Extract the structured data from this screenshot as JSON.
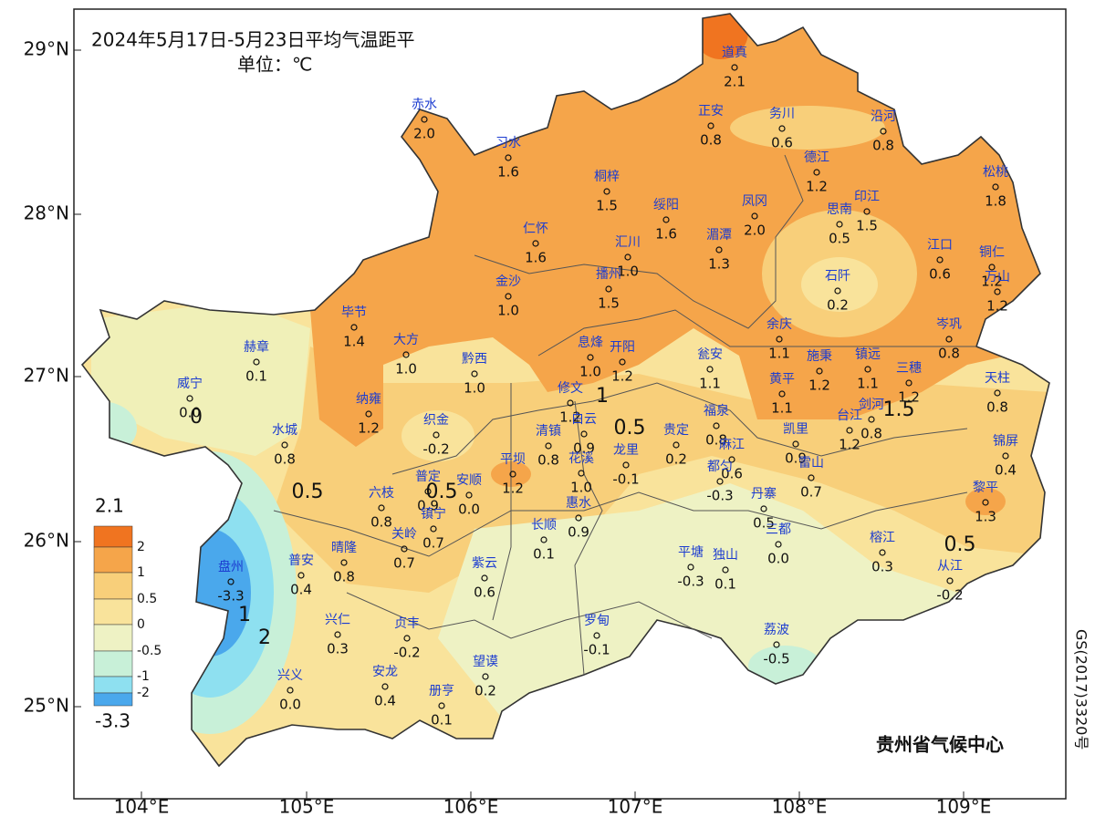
{
  "header": {
    "title": "2024年5月17日-5月23日平均气温距平",
    "unit": "单位：℃"
  },
  "axes": {
    "lat": [
      "29°N",
      "28°N",
      "27°N",
      "26°N",
      "25°N"
    ],
    "lon": [
      "104°E",
      "105°E",
      "106°E",
      "107°E",
      "108°E",
      "109°E"
    ]
  },
  "legend": {
    "max": "2.1",
    "min": "-3.3",
    "ticks": [
      "2",
      "1",
      "0.5",
      "0",
      "-0.5",
      "-1",
      "-2"
    ]
  },
  "stations": [
    {
      "name": "道真",
      "value": "2.1"
    },
    {
      "name": "赤水",
      "value": "2.0"
    },
    {
      "name": "习水",
      "value": "1.6"
    },
    {
      "name": "正安",
      "value": "0.8"
    },
    {
      "name": "务川",
      "value": "0.6"
    },
    {
      "name": "沿河",
      "value": "0.8"
    },
    {
      "name": "德江",
      "value": "1.2"
    },
    {
      "name": "桐梓",
      "value": "1.5"
    },
    {
      "name": "松桃",
      "value": "1.8"
    },
    {
      "name": "绥阳",
      "value": "1.6"
    },
    {
      "name": "凤冈",
      "value": "2.0"
    },
    {
      "name": "印江",
      "value": "1.5"
    },
    {
      "name": "思南",
      "value": "0.5"
    },
    {
      "name": "仁怀",
      "value": "1.6"
    },
    {
      "name": "汇川",
      "value": "1.0"
    },
    {
      "name": "湄潭",
      "value": "1.3"
    },
    {
      "name": "江口",
      "value": "0.6"
    },
    {
      "name": "铜仁",
      "value": "1.2"
    },
    {
      "name": "万山",
      "value": "1.2"
    },
    {
      "name": "石阡",
      "value": "0.2"
    },
    {
      "name": "播州",
      "value": "1.5"
    },
    {
      "name": "金沙",
      "value": "1.0"
    },
    {
      "name": "毕节",
      "value": "1.4"
    },
    {
      "name": "赫章",
      "value": "0.1"
    },
    {
      "name": "大方",
      "value": "1.0"
    },
    {
      "name": "黔西",
      "value": "1.0"
    },
    {
      "name": "息烽",
      "value": "1.0"
    },
    {
      "name": "开阳",
      "value": "1.2"
    },
    {
      "name": "瓮安",
      "value": "1.1"
    },
    {
      "name": "余庆",
      "value": "1.1"
    },
    {
      "name": "施秉",
      "value": "1.2"
    },
    {
      "name": "镇远",
      "value": "1.1"
    },
    {
      "name": "岑巩",
      "value": "0.8"
    },
    {
      "name": "三穗",
      "value": "1.2"
    },
    {
      "name": "天柱",
      "value": "0.8"
    },
    {
      "name": "威宁",
      "value": "0.0"
    },
    {
      "name": "纳雍",
      "value": "1.2"
    },
    {
      "name": "修文",
      "value": "1.2"
    },
    {
      "name": "织金",
      "value": "-0.2"
    },
    {
      "name": "清镇",
      "value": "0.8"
    },
    {
      "name": "白云",
      "value": "0.9"
    },
    {
      "name": "花溪",
      "value": "1.0"
    },
    {
      "name": "龙里",
      "value": "-0.1"
    },
    {
      "name": "贵定",
      "value": "0.2"
    },
    {
      "name": "福泉",
      "value": "0.8"
    },
    {
      "name": "麻江",
      "value": "0.6"
    },
    {
      "name": "都匀",
      "value": "-0.3"
    },
    {
      "name": "凯里",
      "value": "0.9"
    },
    {
      "name": "黄平",
      "value": "1.1"
    },
    {
      "name": "台江",
      "value": "1.2"
    },
    {
      "name": "剑河",
      "value": "0.8"
    },
    {
      "name": "雷山",
      "value": "0.7"
    },
    {
      "name": "锦屏",
      "value": "0.4"
    },
    {
      "name": "黎平",
      "value": "1.3"
    },
    {
      "name": "水城",
      "value": "0.8"
    },
    {
      "name": "平坝",
      "value": "1.2"
    },
    {
      "name": "普定",
      "value": "0.9"
    },
    {
      "name": "安顺",
      "value": "0.0"
    },
    {
      "name": "六枝",
      "value": "0.8"
    },
    {
      "name": "镇宁",
      "value": "0.7"
    },
    {
      "name": "惠水",
      "value": "0.9"
    },
    {
      "name": "长顺",
      "value": "0.1"
    },
    {
      "name": "丹寨",
      "value": "0.5"
    },
    {
      "name": "三都",
      "value": "0.0"
    },
    {
      "name": "榕江",
      "value": "0.3"
    },
    {
      "name": "从江",
      "value": "-0.2"
    },
    {
      "name": "关岭",
      "value": "0.7"
    },
    {
      "name": "晴隆",
      "value": "0.8"
    },
    {
      "name": "普安",
      "value": "0.4"
    },
    {
      "name": "盘州",
      "value": "-3.3"
    },
    {
      "name": "紫云",
      "value": "0.6"
    },
    {
      "name": "平塘",
      "value": "-0.3"
    },
    {
      "name": "独山",
      "value": "0.1"
    },
    {
      "name": "兴仁",
      "value": "0.3"
    },
    {
      "name": "贞丰",
      "value": "-0.2"
    },
    {
      "name": "罗甸",
      "value": "-0.1"
    },
    {
      "name": "荔波",
      "value": "-0.5"
    },
    {
      "name": "兴义",
      "value": "0.0"
    },
    {
      "name": "安龙",
      "value": "0.4"
    },
    {
      "name": "望谟",
      "value": "0.2"
    },
    {
      "name": "册亨",
      "value": "0.1"
    }
  ],
  "contour_labels": [
    "0.5",
    "0.5",
    "0.5",
    "0.5",
    "1",
    "1",
    "2",
    "1.5",
    "0"
  ],
  "footer": {
    "credit": "贵州省气候中心",
    "code": "GS(2017)3320号"
  }
}
